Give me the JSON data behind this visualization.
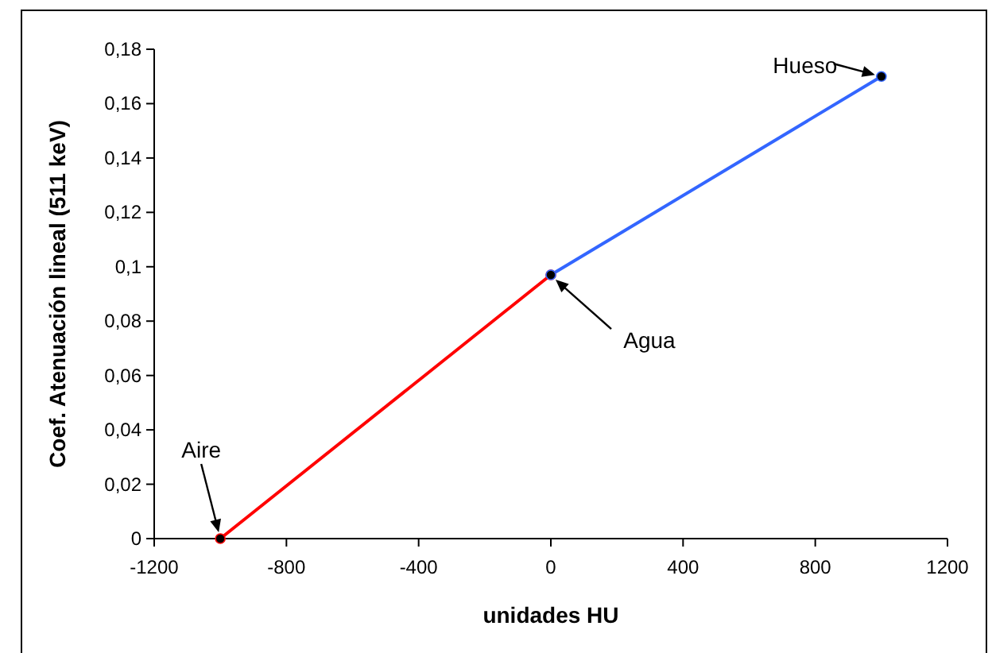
{
  "chart_data": {
    "type": "line",
    "xlabel": "unidades HU",
    "ylabel": "Coef. Atenuación lineal (511 keV)",
    "series": [
      {
        "x": [
          -1000,
          0
        ],
        "values": [
          0,
          0.097
        ],
        "color": "#ff0000"
      },
      {
        "x": [
          0,
          1000
        ],
        "values": [
          0.097,
          0.17
        ],
        "color": "#3366ff"
      }
    ],
    "marker": "circle",
    "line_style": "solid",
    "grid": false,
    "xlim": [
      -1200,
      1200
    ],
    "xticks": [
      -1200,
      -800,
      -400,
      0,
      400,
      800,
      1200
    ],
    "ylim": [
      0,
      0.18
    ],
    "yticks": [
      {
        "value": 0,
        "label": "0"
      },
      {
        "value": 0.02,
        "label": "0,02"
      },
      {
        "value": 0.04,
        "label": "0,04"
      },
      {
        "value": 0.06,
        "label": "0,06"
      },
      {
        "value": 0.08,
        "label": "0,08"
      },
      {
        "value": 0.1,
        "label": "0,1"
      },
      {
        "value": 0.12,
        "label": "0,12"
      },
      {
        "value": 0.14,
        "label": "0,14"
      },
      {
        "value": 0.16,
        "label": "0,16"
      },
      {
        "value": 0.18,
        "label": "0,18"
      }
    ],
    "annotations": [
      {
        "text": "Aire",
        "x": -1000,
        "y": 0
      },
      {
        "text": "Agua",
        "x": 0,
        "y": 0.097
      },
      {
        "text": "Hueso",
        "x": 1000,
        "y": 0.17
      }
    ]
  }
}
